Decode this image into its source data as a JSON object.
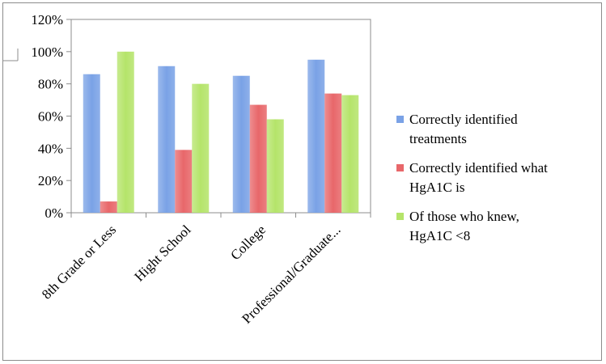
{
  "chart_data": {
    "type": "bar",
    "categories": [
      "8th Grade or Less",
      "Hight School",
      "College",
      "Professional/Graduate..."
    ],
    "series": [
      {
        "name": "Correctly identified treatments",
        "values": [
          86,
          91,
          85,
          95
        ],
        "color": "#7aa2e6"
      },
      {
        "name": "Correctly identified what HgA1C is",
        "values": [
          7,
          39,
          67,
          74
        ],
        "color": "#e8676a"
      },
      {
        "name": "Of those who knew, HgA1C <8",
        "values": [
          100,
          80,
          58,
          73
        ],
        "color": "#b5e46a"
      }
    ],
    "yticks": [
      "0%",
      "20%",
      "40%",
      "60%",
      "80%",
      "100%",
      "120%"
    ],
    "ylim": [
      0,
      120
    ],
    "legend_lines": [
      [
        "Correctly identified",
        "treatments"
      ],
      [
        "Correctly identified what",
        "HgA1C is"
      ],
      [
        "Of those who knew,",
        "HgA1C <8"
      ]
    ],
    "legend_position": "right",
    "grid": false
  }
}
